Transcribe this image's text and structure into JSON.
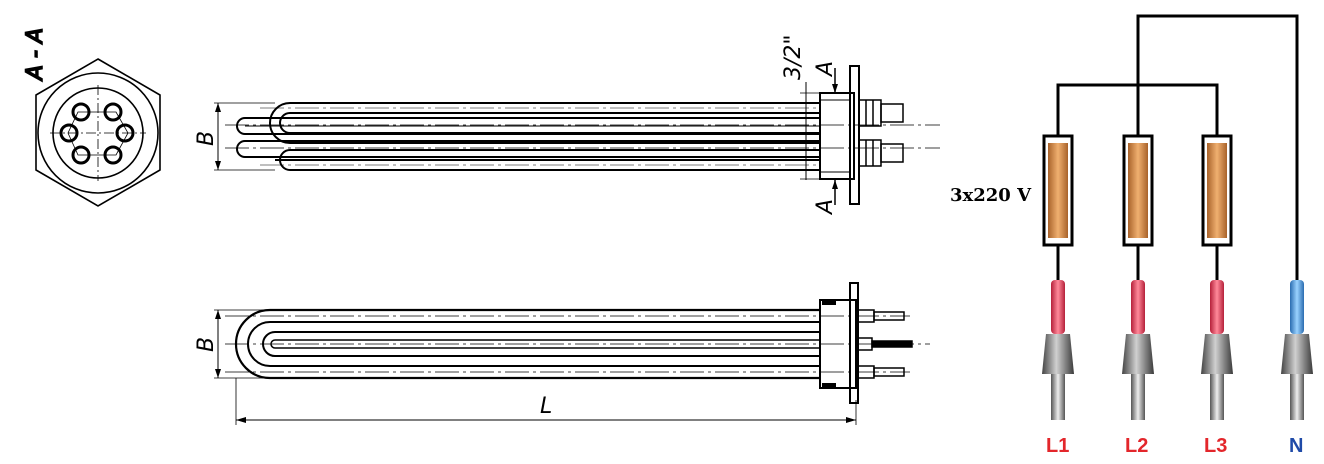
{
  "section_view": {
    "label": "A - A"
  },
  "top_view": {
    "width_label": "B",
    "thread_label": "3/2\"",
    "section_mark_top": "A",
    "section_mark_bottom": "A"
  },
  "side_view": {
    "width_label": "B",
    "length_label": "L"
  },
  "wiring": {
    "voltage_label": "3x220 V",
    "terminals": [
      {
        "label": "L1",
        "color": "#e3262b",
        "cap_color": "#d63a4c"
      },
      {
        "label": "L2",
        "color": "#e3262b",
        "cap_color": "#d63a4c"
      },
      {
        "label": "L3",
        "color": "#e3262b",
        "cap_color": "#d63a4c"
      },
      {
        "label": "N",
        "color": "#1f4aa8",
        "cap_color": "#3a8fd6"
      }
    ],
    "element_color": "#d9924a"
  }
}
